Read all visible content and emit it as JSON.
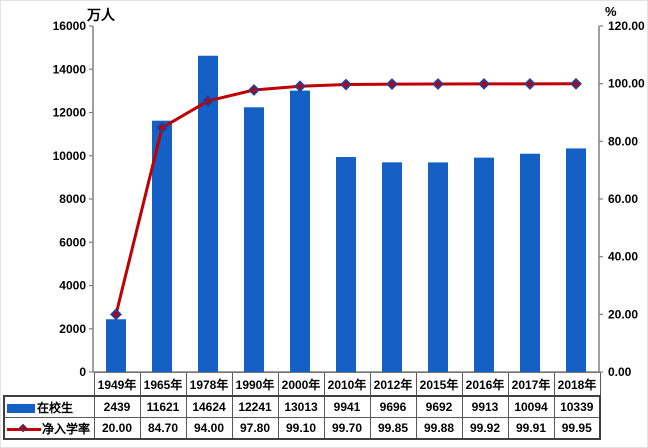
{
  "chart_data": {
    "type": "bar",
    "subtype": "bar-line-combo",
    "categories": [
      "1949年",
      "1965年",
      "1978年",
      "1990年",
      "2000年",
      "2010年",
      "2012年",
      "2015年",
      "2016年",
      "2017年",
      "2018年"
    ],
    "series": [
      {
        "name": "在校生",
        "type": "bar",
        "axis": "left",
        "color": "#1560c4",
        "values": [
          2439,
          11621,
          14624,
          12241,
          13013,
          9941,
          9696,
          9692,
          9913,
          10094,
          10339
        ]
      },
      {
        "name": "净入学率",
        "type": "line",
        "axis": "right",
        "color": "#c00000",
        "marker": "diamond",
        "marker_border_color": "#283c96",
        "values": [
          "20.00",
          "84.70",
          "94.00",
          "97.80",
          "99.10",
          "99.70",
          "99.85",
          "99.88",
          "99.92",
          "99.91",
          "99.95"
        ]
      }
    ],
    "left_axis": {
      "unit_label": "万人",
      "min": 0,
      "max": 16000,
      "step": 2000
    },
    "right_axis": {
      "unit_label": "%",
      "min": 0,
      "max": 120,
      "step": 20,
      "decimals": 2
    },
    "gridlines": false,
    "legend_position": "data-table-left",
    "axis_line_color": "#808080",
    "table_border_color": "#595959"
  }
}
